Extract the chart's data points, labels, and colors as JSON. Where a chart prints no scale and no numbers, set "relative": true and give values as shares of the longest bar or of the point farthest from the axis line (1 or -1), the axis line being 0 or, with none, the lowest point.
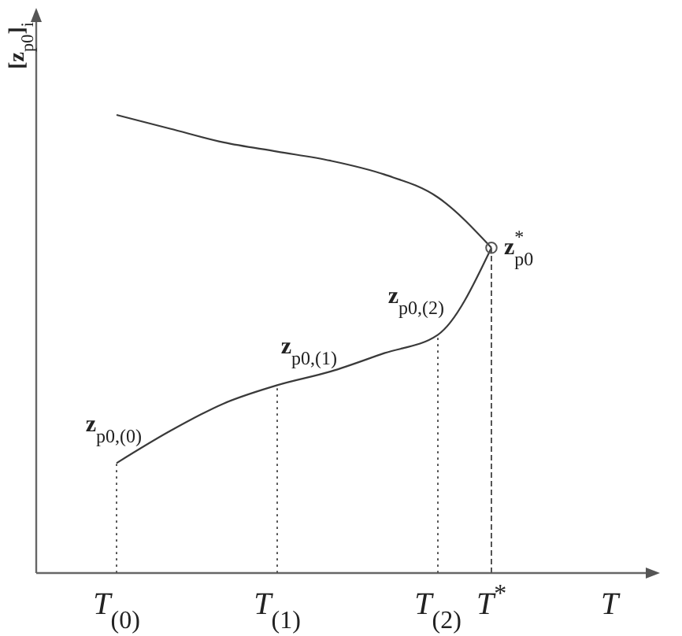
{
  "chart_data": {
    "type": "line",
    "xlabel": "T",
    "ylabel": "[z$_{p0}$]$_{i}$",
    "relative": true,
    "categories": [
      "T$_{(0)}$",
      null,
      null,
      "T$_{(1)}$",
      null,
      null,
      "T$_{(2)}$",
      "T$^{*}$"
    ],
    "series": [
      {
        "color": "#3a3a3a",
        "values": [
          0.24,
          0.31,
          0.37,
          0.41,
          0.44,
          0.48,
          0.52,
          0.71
        ]
      },
      {
        "color": "#3a3a3a",
        "values": [
          1,
          0.97,
          0.94,
          0.92,
          0.9,
          0.87,
          0.82,
          0.71
        ]
      },
      {
        "color": "#555555",
        "line_style": "dotted",
        "x": [
          "T$_{(0)}$",
          "T$_{(0)}$"
        ],
        "values": [
          0,
          0.24
        ]
      },
      {
        "color": "#555555",
        "line_style": "dotted",
        "x": [
          "T$_{(1)}$",
          "T$_{(1)}$"
        ],
        "values": [
          0,
          0.41
        ]
      },
      {
        "color": "#555555",
        "line_style": "dotted",
        "x": [
          "T$_{(2)}$",
          "T$_{(2)}$"
        ],
        "values": [
          0,
          0.52
        ]
      },
      {
        "type": "lollipop",
        "color": "#555555",
        "line_style": "dashed",
        "marker": "circle",
        "values": [
          null,
          null,
          null,
          null,
          null,
          null,
          null,
          0.71
        ]
      }
    ],
    "annotations": [
      {
        "text": "z$_{p0,(0)}$",
        "x": "T$_{(0)}$",
        "y": 0.24
      },
      {
        "text": "z$_{p0,(1)}$",
        "x": "T$_{(1)}$",
        "y": 0.41
      },
      {
        "text": "z$_{p0,(2)}$",
        "x": "T$_{(2)}$",
        "y": 0.52
      },
      {
        "text": "z$^{*}$$_{p0}$",
        "x": "T$^{*}$",
        "y": 0.71
      }
    ]
  }
}
